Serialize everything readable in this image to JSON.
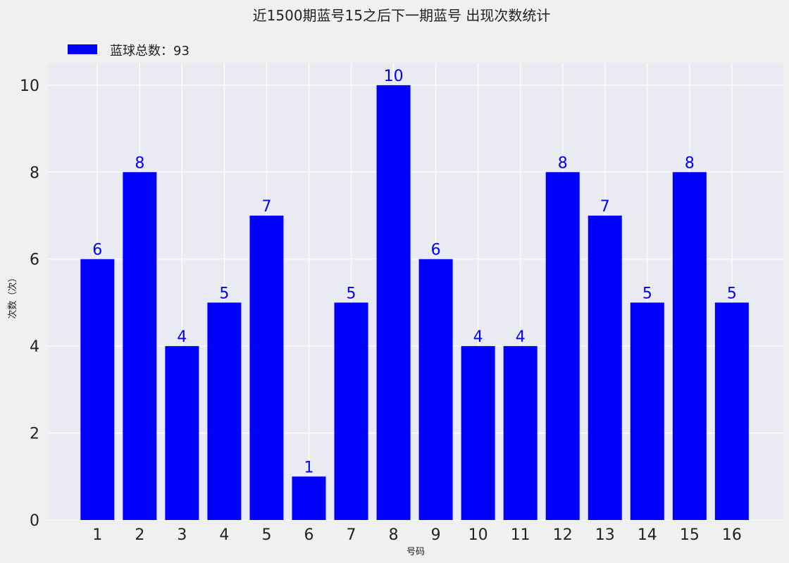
{
  "chart_data": {
    "type": "bar",
    "title": "近1500期蓝号15之后下一期蓝号 出现次数统计",
    "xlabel": "号码",
    "ylabel": "次数（次）",
    "categories": [
      "1",
      "2",
      "3",
      "4",
      "5",
      "6",
      "7",
      "8",
      "9",
      "10",
      "11",
      "12",
      "13",
      "14",
      "15",
      "16"
    ],
    "series": [
      {
        "name": "蓝球总数：93",
        "values": [
          6,
          8,
          4,
          5,
          7,
          1,
          5,
          10,
          6,
          4,
          4,
          8,
          7,
          5,
          8,
          5
        ]
      }
    ],
    "ylim": [
      0,
      10.5
    ],
    "yticks": [
      0,
      2,
      4,
      6,
      8,
      10
    ],
    "grid": true,
    "legend_position": "top-left",
    "data_labels": true
  },
  "colors": {
    "bar": "#0000ff",
    "data_label": "#0000ff",
    "plot_background": "#eaeaf2",
    "figure_background": "#f0f0f0",
    "grid": "#ffffff"
  }
}
